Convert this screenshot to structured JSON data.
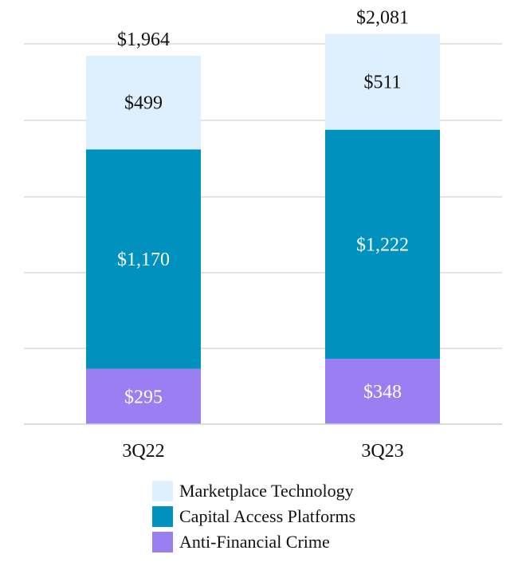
{
  "chart_data": {
    "type": "bar",
    "stacked": true,
    "categories": [
      "3Q22",
      "3Q23"
    ],
    "series": [
      {
        "name": "Anti-Financial Crime",
        "values": [
          295,
          348
        ],
        "color": "#9b7ff2",
        "labels": [
          "$295",
          "$348"
        ],
        "label_color": "#ffffff"
      },
      {
        "name": "Capital Access Platforms",
        "values": [
          1170,
          1222
        ],
        "color": "#0091bf",
        "labels": [
          "$1,170",
          "$1,222"
        ],
        "label_color": "#ffffff"
      },
      {
        "name": "Marketplace Technology",
        "values": [
          499,
          511
        ],
        "color": "#def0fe",
        "labels": [
          "$499",
          "$511"
        ],
        "label_color": "#111111"
      }
    ],
    "totals": [
      1964,
      2081
    ],
    "total_labels": [
      "$1,964",
      "$2,081"
    ],
    "ylim": [
      0,
      2100
    ],
    "gridlines": [
      0,
      400,
      800,
      1200,
      1600,
      2000
    ],
    "grid": true,
    "legend_position": "bottom"
  },
  "legend": [
    {
      "label": "Marketplace Technology",
      "color": "#def0fe"
    },
    {
      "label": "Capital Access Platforms",
      "color": "#0091bf"
    },
    {
      "label": "Anti-Financial Crime",
      "color": "#9b7ff2"
    }
  ]
}
